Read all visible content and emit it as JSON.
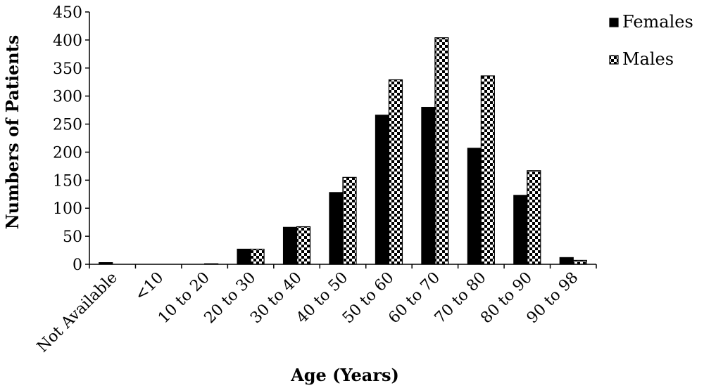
{
  "chart_data": {
    "type": "bar",
    "categories": [
      "Not Available",
      "<10",
      "10 to 20",
      "20 to 30",
      "30 to 40",
      "40 to 50",
      "50 to 60",
      "60 to 70",
      "70 to 80",
      "80 to 90",
      "90 to 98"
    ],
    "series": [
      {
        "name": "Females",
        "values": [
          3,
          0,
          0,
          27,
          66,
          128,
          266,
          280,
          207,
          123,
          12
        ],
        "color": "#000000",
        "pattern": "solid"
      },
      {
        "name": "Males",
        "values": [
          0,
          0,
          1,
          27,
          67,
          155,
          329,
          404,
          336,
          167,
          7
        ],
        "color": "#000000",
        "pattern": "checkered"
      }
    ],
    "xlabel": "Age (Years)",
    "ylabel": "Numbers of Patients",
    "ylim": [
      0,
      450
    ],
    "yticks": [
      0,
      50,
      100,
      150,
      200,
      250,
      300,
      350,
      400,
      450
    ],
    "grid": false,
    "legend_position": "top-right"
  }
}
